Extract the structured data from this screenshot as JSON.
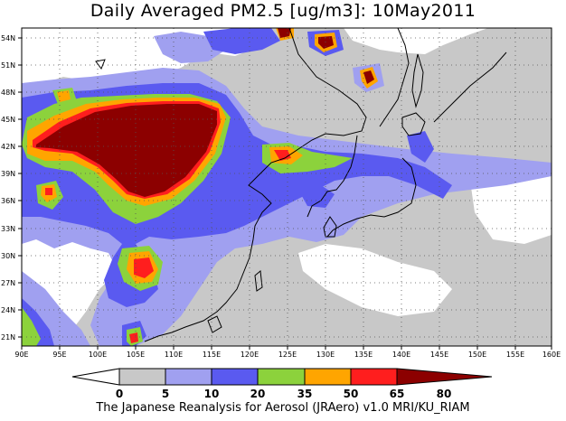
{
  "title": "Daily Averaged PM2.5 [ug/m3]: 10May2011",
  "credit": "The Japanese Reanalysis for Aerosol (JRAero) v1.0 MRI/KU_RIAM",
  "lon_ticks": [
    "90E",
    "95E",
    "100E",
    "105E",
    "110E",
    "115E",
    "120E",
    "125E",
    "130E",
    "135E",
    "140E",
    "145E",
    "150E",
    "155E",
    "160E"
  ],
  "lat_ticks": [
    "54N",
    "51N",
    "48N",
    "45N",
    "42N",
    "39N",
    "36N",
    "33N",
    "30N",
    "27N",
    "24N",
    "21N"
  ],
  "colorbar": {
    "labels": [
      "0",
      "5",
      "10",
      "20",
      "35",
      "50",
      "65",
      "80"
    ],
    "colors": [
      "#ffffff",
      "#c8c8c8",
      "#a0a0f0",
      "#5a5af0",
      "#8cd23c",
      "#ffa500",
      "#ff1e1e",
      "#8c0000"
    ]
  }
}
